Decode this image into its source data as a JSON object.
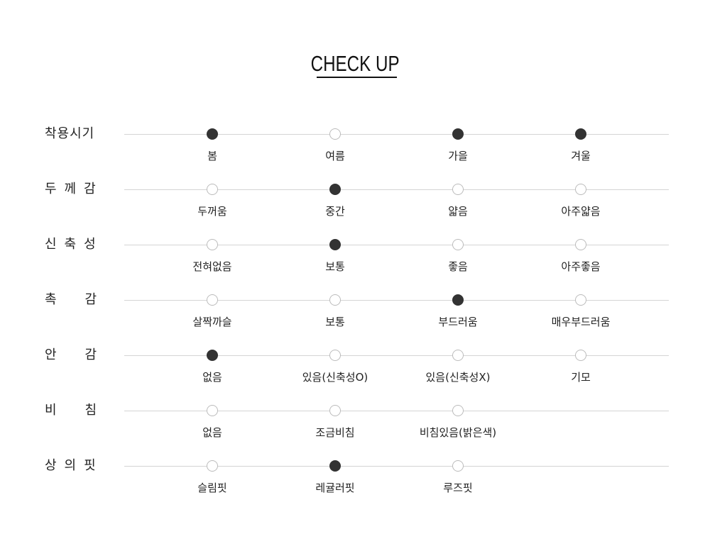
{
  "title": "CHECK UP",
  "colors": {
    "selected": "#333333",
    "line": "#d4d4d4",
    "unselected_border": "#bbbbbb"
  },
  "rows": [
    {
      "label": "착용시기",
      "options": [
        {
          "label": "봄",
          "selected": true
        },
        {
          "label": "여름",
          "selected": false
        },
        {
          "label": "가을",
          "selected": true
        },
        {
          "label": "겨울",
          "selected": true
        }
      ]
    },
    {
      "label": "두께감",
      "options": [
        {
          "label": "두꺼움",
          "selected": false
        },
        {
          "label": "중간",
          "selected": true
        },
        {
          "label": "얇음",
          "selected": false
        },
        {
          "label": "아주얇음",
          "selected": false
        }
      ]
    },
    {
      "label": "신축성",
      "options": [
        {
          "label": "전혀없음",
          "selected": false
        },
        {
          "label": "보통",
          "selected": true
        },
        {
          "label": "좋음",
          "selected": false
        },
        {
          "label": "아주좋음",
          "selected": false
        }
      ]
    },
    {
      "label": "촉감",
      "options": [
        {
          "label": "살짝까슬",
          "selected": false
        },
        {
          "label": "보통",
          "selected": false
        },
        {
          "label": "부드러움",
          "selected": true
        },
        {
          "label": "매우부드러움",
          "selected": false
        }
      ]
    },
    {
      "label": "안감",
      "options": [
        {
          "label": "없음",
          "selected": true
        },
        {
          "label": "있음(신축성O)",
          "selected": false
        },
        {
          "label": "있음(신축성X)",
          "selected": false
        },
        {
          "label": "기모",
          "selected": false
        }
      ]
    },
    {
      "label": "비침",
      "options": [
        {
          "label": "없음",
          "selected": false
        },
        {
          "label": "조금비침",
          "selected": false
        },
        {
          "label": "비침있음(밝은색)",
          "selected": false
        }
      ]
    },
    {
      "label": "상의핏",
      "options": [
        {
          "label": "슬림핏",
          "selected": false
        },
        {
          "label": "레귤러핏",
          "selected": true
        },
        {
          "label": "루즈핏",
          "selected": false
        }
      ]
    }
  ]
}
